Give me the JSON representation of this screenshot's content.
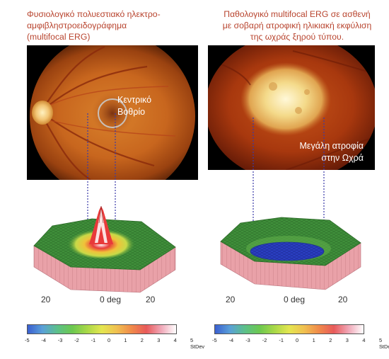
{
  "left_panel": {
    "title_lines": [
      "Φυσιολογικό πολυεστιακό ηλεκτρο-",
      "αμφιβληστροειδογράφημα",
      "(multifocal ERG)"
    ],
    "fovea_label_lines": [
      "Κεντρικό",
      "Βοθρίο"
    ],
    "axis": {
      "left": "20",
      "center": "0 deg",
      "right": "20"
    }
  },
  "right_panel": {
    "title_lines": [
      "Παθολογικό multifocal ERG σε ασθενή",
      "με σοβαρή ατροφική ηλικιακή εκφύλιση",
      "της ωχράς ξηρού τύπου."
    ],
    "atrophy_label_lines": [
      "Μεγάλη ατροφία",
      "στην Ωχρά"
    ],
    "axis": {
      "left": "20",
      "center": "0 deg",
      "right": "20"
    }
  },
  "color_scale": {
    "ticks": [
      "-5",
      "-4",
      "-3",
      "-2",
      "-1",
      "0",
      "1",
      "2",
      "3",
      "4",
      "5 StDev"
    ],
    "colors": [
      "#3a5fd0",
      "#5aa0d8",
      "#5cc08a",
      "#6cc850",
      "#a8d848",
      "#e4e650",
      "#f0c050",
      "#f08a4a",
      "#e85a5a",
      "#f0a8b8",
      "#ffffff"
    ]
  },
  "palette": {
    "title": "#b8442e",
    "dashed_line": "#3a3aa8",
    "surface_green": "#3f8f3a",
    "surface_side": "#e9a1a8",
    "crater_blue": "#2a3ec0"
  }
}
